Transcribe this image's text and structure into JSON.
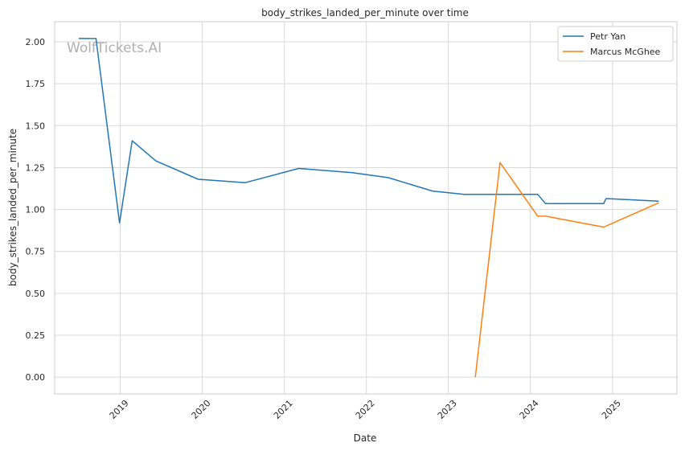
{
  "chart_data": {
    "type": "line",
    "title": "body_strikes_landed_per_minute over time",
    "xlabel": "Date",
    "ylabel": "body_strikes_landed_per_minute",
    "watermark": "WolfTickets.AI",
    "x_ticks": [
      "2019",
      "2020",
      "2021",
      "2022",
      "2023",
      "2024",
      "2025"
    ],
    "y_ticks": [
      "0.00",
      "0.25",
      "0.50",
      "0.75",
      "1.00",
      "1.25",
      "1.50",
      "1.75",
      "2.00"
    ],
    "xlim": [
      "2018-03-15",
      "2025-10-15"
    ],
    "ylim": [
      -0.1,
      2.12
    ],
    "grid": true,
    "legend_position": "top-right",
    "series": [
      {
        "name": "Petr Yan",
        "color": "#1f77b4",
        "points": [
          [
            "2018-06-30",
            2.02
          ],
          [
            "2018-09-15",
            2.02
          ],
          [
            "2018-12-29",
            0.92
          ],
          [
            "2019-02-23",
            1.41
          ],
          [
            "2019-06-08",
            1.29
          ],
          [
            "2019-12-14",
            1.18
          ],
          [
            "2020-07-11",
            1.16
          ],
          [
            "2021-03-06",
            1.245
          ],
          [
            "2021-10-30",
            1.22
          ],
          [
            "2022-04-09",
            1.19
          ],
          [
            "2022-10-22",
            1.11
          ],
          [
            "2023-03-11",
            1.09
          ],
          [
            "2024-02-03",
            1.09
          ],
          [
            "2024-03-09",
            1.035
          ],
          [
            "2024-11-23",
            1.035
          ],
          [
            "2024-12-03",
            1.065
          ],
          [
            "2025-07-26",
            1.05
          ]
        ]
      },
      {
        "name": "Marcus McGhee",
        "color": "#ff7f0e",
        "points": [
          [
            "2023-05-01",
            0.0
          ],
          [
            "2023-08-19",
            1.28
          ],
          [
            "2024-02-03",
            0.96
          ],
          [
            "2024-03-09",
            0.96
          ],
          [
            "2024-11-23",
            0.895
          ],
          [
            "2025-07-26",
            1.04
          ]
        ]
      }
    ]
  }
}
